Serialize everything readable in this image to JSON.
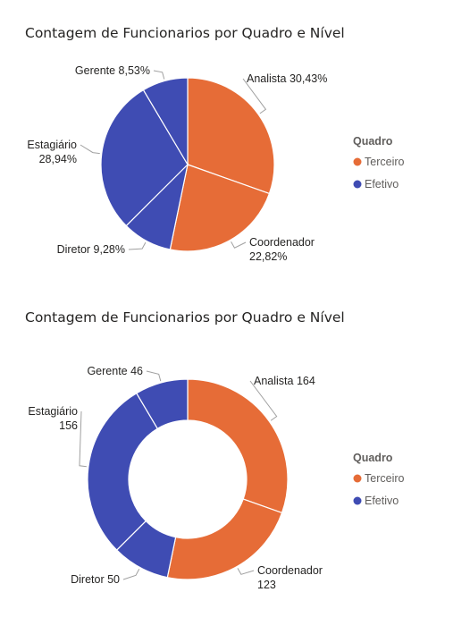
{
  "colors": {
    "terceiro": "#E66C37",
    "efetivo": "#3F4CB3"
  },
  "chart_data": [
    {
      "type": "pie",
      "title": "Contagem de Funcionarios por Quadro e Nível",
      "legend_title": "Quadro",
      "legend": [
        "Terceiro",
        "Efetivo"
      ],
      "slices": [
        {
          "name": "Analista",
          "value": 30.43,
          "quadro": "Terceiro",
          "label": [
            "Analista 30,43%"
          ]
        },
        {
          "name": "Coordenador",
          "value": 22.82,
          "quadro": "Terceiro",
          "label": [
            "Coordenador",
            "22,82%"
          ]
        },
        {
          "name": "Diretor",
          "value": 9.28,
          "quadro": "Efetivo",
          "label": [
            "Diretor 9,28%"
          ]
        },
        {
          "name": "Estagiário",
          "value": 28.94,
          "quadro": "Efetivo",
          "label": [
            "Estagiário",
            "28,94%"
          ]
        },
        {
          "name": "Gerente",
          "value": 8.53,
          "quadro": "Efetivo",
          "label": [
            "Gerente 8,53%"
          ]
        }
      ]
    },
    {
      "type": "pie",
      "title": "Contagem de Funcionarios por Quadro e Nível",
      "legend_title": "Quadro",
      "legend": [
        "Terceiro",
        "Efetivo"
      ],
      "slices": [
        {
          "name": "Analista",
          "value": 164,
          "quadro": "Terceiro",
          "label": [
            "Analista 164"
          ]
        },
        {
          "name": "Coordenador",
          "value": 123,
          "quadro": "Terceiro",
          "label": [
            "Coordenador",
            "123"
          ]
        },
        {
          "name": "Diretor",
          "value": 50,
          "quadro": "Efetivo",
          "label": [
            "Diretor 50"
          ]
        },
        {
          "name": "Estagiário",
          "value": 156,
          "quadro": "Efetivo",
          "label": [
            "Estagiário",
            "156"
          ]
        },
        {
          "name": "Gerente",
          "value": 46,
          "quadro": "Efetivo",
          "label": [
            "Gerente 46"
          ]
        }
      ]
    }
  ]
}
